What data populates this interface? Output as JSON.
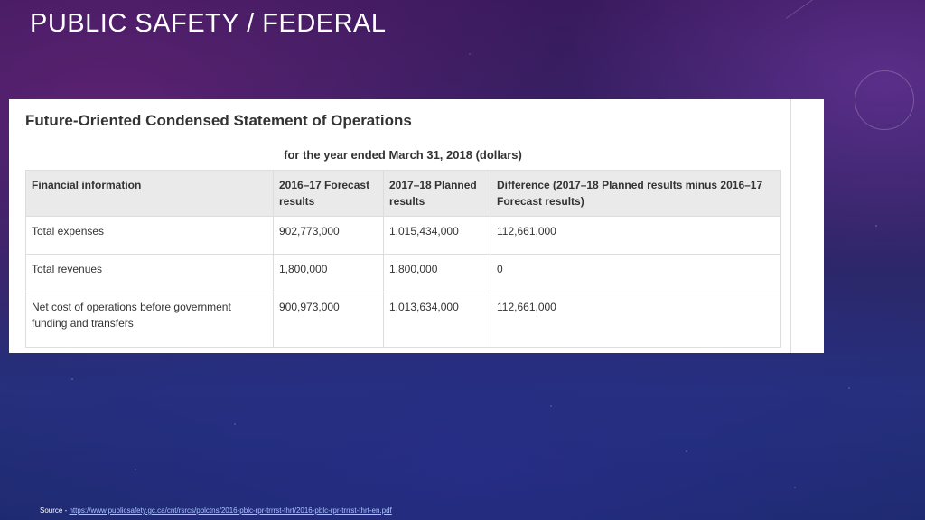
{
  "slide": {
    "title": "PUBLIC SAFETY / FEDERAL"
  },
  "statement": {
    "title": "Future-Oriented Condensed Statement of Operations",
    "subtitle": "for the year ended March 31, 2018 (dollars)",
    "columns": [
      "Financial information",
      "2016–17 Forecast results",
      "2017–18 Planned results",
      "Difference (2017–18 Planned results minus 2016–17 Forecast results)"
    ],
    "rows": [
      {
        "label": "Total expenses",
        "forecast": "902,773,000",
        "planned": "1,015,434,000",
        "difference": "112,661,000"
      },
      {
        "label": "Total revenues",
        "forecast": "1,800,000",
        "planned": "1,800,000",
        "difference": "0"
      },
      {
        "label": "Net cost of operations before government funding and transfers",
        "forecast": "900,973,000",
        "planned": "1,013,634,000",
        "difference": "112,661,000"
      }
    ]
  },
  "source": {
    "prefix": "Source - ",
    "url": "https://www.publicsafety.gc.ca/cnt/rsrcs/pblctns/2016-pblc-rpr-trrrst-thrt/2016-pblc-rpr-trrrst-thrt-en.pdf"
  },
  "colors": {
    "title_text": "#ffffff",
    "panel_background": "#ffffff",
    "table_header_background": "#eaeaea",
    "link": "#a9c4ff"
  }
}
